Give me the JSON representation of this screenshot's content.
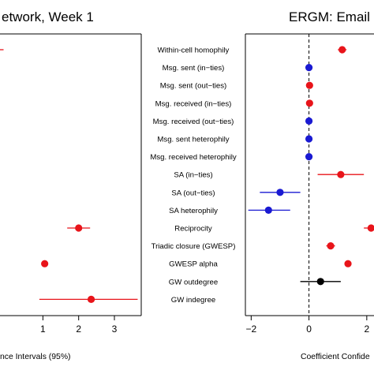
{
  "chart_data": [
    {
      "type": "scatter",
      "title": "etwork, Week 1",
      "xlabel": "nce Intervals (95%)",
      "xlim": [
        -0.2,
        3.75
      ],
      "ticks": [
        1,
        2,
        3
      ],
      "tick_labels": [
        "1",
        "2",
        "3"
      ],
      "series": [
        {
          "color": "#e8141a",
          "points": [
            {
              "category": "Reciprocity",
              "value": 2.0,
              "ci": [
                1.68,
                2.32
              ]
            },
            {
              "category": "GWESP alpha",
              "value": 1.05,
              "ci": [
                1.05,
                1.05
              ]
            },
            {
              "category": "GW indegree",
              "value": 2.35,
              "ci": [
                0.9,
                3.65
              ]
            }
          ]
        }
      ],
      "truncated_left_points": [
        {
          "category": "Within-cell homophily",
          "ci_upper": -0.1
        }
      ]
    },
    {
      "type": "scatter",
      "title": "ERGM: Email N",
      "xlabel": "Coefficient Confide",
      "xlim": [
        -2.2,
        2.25
      ],
      "ticks": [
        -2,
        0,
        2
      ],
      "tick_labels": [
        "−2",
        "0",
        "2"
      ],
      "reference_line": 0,
      "series": [
        {
          "color": "#e8141a",
          "points": [
            {
              "category": "Within-cell homophily",
              "value": 1.15,
              "ci": [
                1.0,
                1.3
              ]
            },
            {
              "category": "Msg. sent (out−ties)",
              "value": 0.02,
              "ci": [
                0.0,
                0.05
              ]
            },
            {
              "category": "Msg. received (in−ties)",
              "value": 0.02,
              "ci": [
                0.0,
                0.05
              ]
            },
            {
              "category": "SA (in−ties)",
              "value": 1.1,
              "ci": [
                0.3,
                1.9
              ]
            },
            {
              "category": "Reciprocity",
              "value": 2.15,
              "ci": [
                1.9,
                2.4
              ]
            },
            {
              "category": "Triadic closure (GWESP)",
              "value": 0.75,
              "ci": [
                0.6,
                0.9
              ]
            },
            {
              "category": "GWESP alpha",
              "value": 1.35,
              "ci": [
                1.3,
                1.4
              ]
            }
          ]
        },
        {
          "color": "#1a1ad2",
          "points": [
            {
              "category": "Msg. sent (in−ties)",
              "value": 0.0,
              "ci": [
                -0.03,
                0.03
              ]
            },
            {
              "category": "Msg. received (out−ties)",
              "value": 0.0,
              "ci": [
                -0.03,
                0.03
              ]
            },
            {
              "category": "Msg. sent heterophily",
              "value": 0.0,
              "ci": [
                -0.03,
                0.03
              ]
            },
            {
              "category": "Msg. received heterophily",
              "value": 0.0,
              "ci": [
                -0.03,
                0.03
              ]
            },
            {
              "category": "SA (out−ties)",
              "value": -1.0,
              "ci": [
                -1.7,
                -0.3
              ]
            },
            {
              "category": "SA heterophily",
              "value": -1.4,
              "ci": [
                -2.1,
                -0.65
              ]
            }
          ]
        },
        {
          "color": "#000000",
          "points": [
            {
              "category": "GW outdegree",
              "value": 0.4,
              "ci": [
                -0.3,
                1.1
              ]
            }
          ]
        }
      ]
    }
  ],
  "categories": [
    "Within-cell homophily",
    "Msg. sent (in−ties)",
    "Msg. sent (out−ties)",
    "Msg. received (in−ties)",
    "Msg. received (out−ties)",
    "Msg. sent heterophily",
    "Msg. received heterophily",
    "SA (in−ties)",
    "SA (out−ties)",
    "SA heterophily",
    "Reciprocity",
    "Triadic closure (GWESP)",
    "GWESP alpha",
    "GW outdegree",
    "GW indegree"
  ]
}
